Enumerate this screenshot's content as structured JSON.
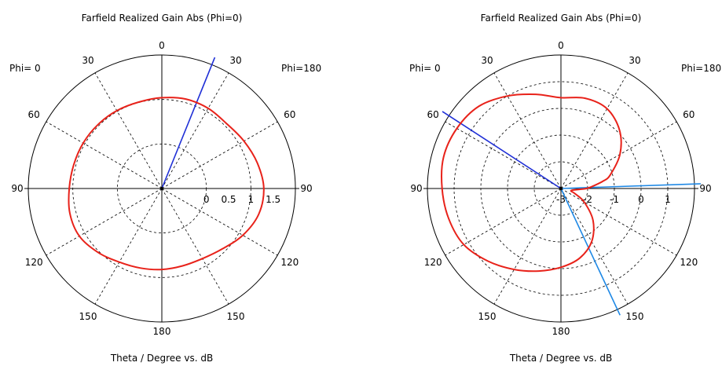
{
  "chart_data": [
    {
      "type": "polar",
      "title": "Farfield Realized Gain Abs (Phi=0)",
      "xlabel": "Theta / Degree vs. dB",
      "phi_left_label": "Phi=  0",
      "phi_right_label": "Phi=180",
      "angle_labels": [
        "0",
        "30",
        "60",
        "90",
        "120",
        "150",
        "180",
        "150",
        "120",
        "90",
        "60",
        "30"
      ],
      "radial_ticks": [
        "0",
        "0.5",
        "1",
        "1.5"
      ],
      "rlim": [
        -1,
        2
      ],
      "grid": true,
      "colors": {
        "main": "#e8221a",
        "beam": "#1f2fd6",
        "accent": "#1e88e5"
      },
      "series": [
        {
          "theta": [
            0,
            15,
            30,
            45,
            60,
            75,
            90,
            105,
            120,
            135,
            150,
            165,
            180,
            195,
            210,
            225,
            240,
            255,
            270,
            285,
            300,
            315,
            330,
            345
          ],
          "values": [
            1.04,
            1.08,
            1.08,
            1.06,
            1.13,
            1.22,
            1.29,
            1.25,
            1.1,
            0.92,
            0.82,
            0.8,
            0.82,
            0.85,
            0.91,
            1.03,
            1.14,
            1.14,
            1.08,
            1.05,
            1.04,
            1.03,
            1.02,
            1.01
          ]
        }
      ],
      "main_lobe_direction": 22
    },
    {
      "type": "polar",
      "title": "Farfield Realized Gain Abs (Phi=0)",
      "xlabel": "Theta / Degree vs. dB",
      "phi_left_label": "Phi=  0",
      "phi_right_label": "Phi=180",
      "angle_labels": [
        "0",
        "30",
        "60",
        "90",
        "120",
        "150",
        "180",
        "150",
        "120",
        "90",
        "60",
        "30"
      ],
      "radial_ticks": [
        "-3",
        "-2",
        "-1",
        "0",
        "1"
      ],
      "rlim": [
        -3,
        2
      ],
      "grid": true,
      "colors": {
        "main": "#e8221a",
        "beam": "#1f2fd6",
        "accent": "#1e88e5"
      },
      "series": [
        {
          "theta": [
            0,
            15,
            30,
            45,
            60,
            75,
            80,
            85,
            90,
            95,
            100,
            105,
            110,
            120,
            135,
            150,
            165,
            180,
            195,
            210,
            225,
            240,
            255,
            270,
            285,
            300,
            315,
            330,
            345
          ],
          "values": [
            0.4,
            0.5,
            0.45,
            0.1,
            -0.45,
            -1.1,
            -1.4,
            -1.75,
            -2.05,
            -2.45,
            -2.6,
            -2.6,
            -2.45,
            -2.0,
            -1.3,
            -0.7,
            -0.3,
            -0.05,
            0.2,
            0.5,
            0.85,
            1.2,
            1.35,
            1.45,
            1.55,
            1.5,
            1.35,
            1.0,
            0.65
          ]
        }
      ],
      "main_lobe_direction": 303
    }
  ]
}
